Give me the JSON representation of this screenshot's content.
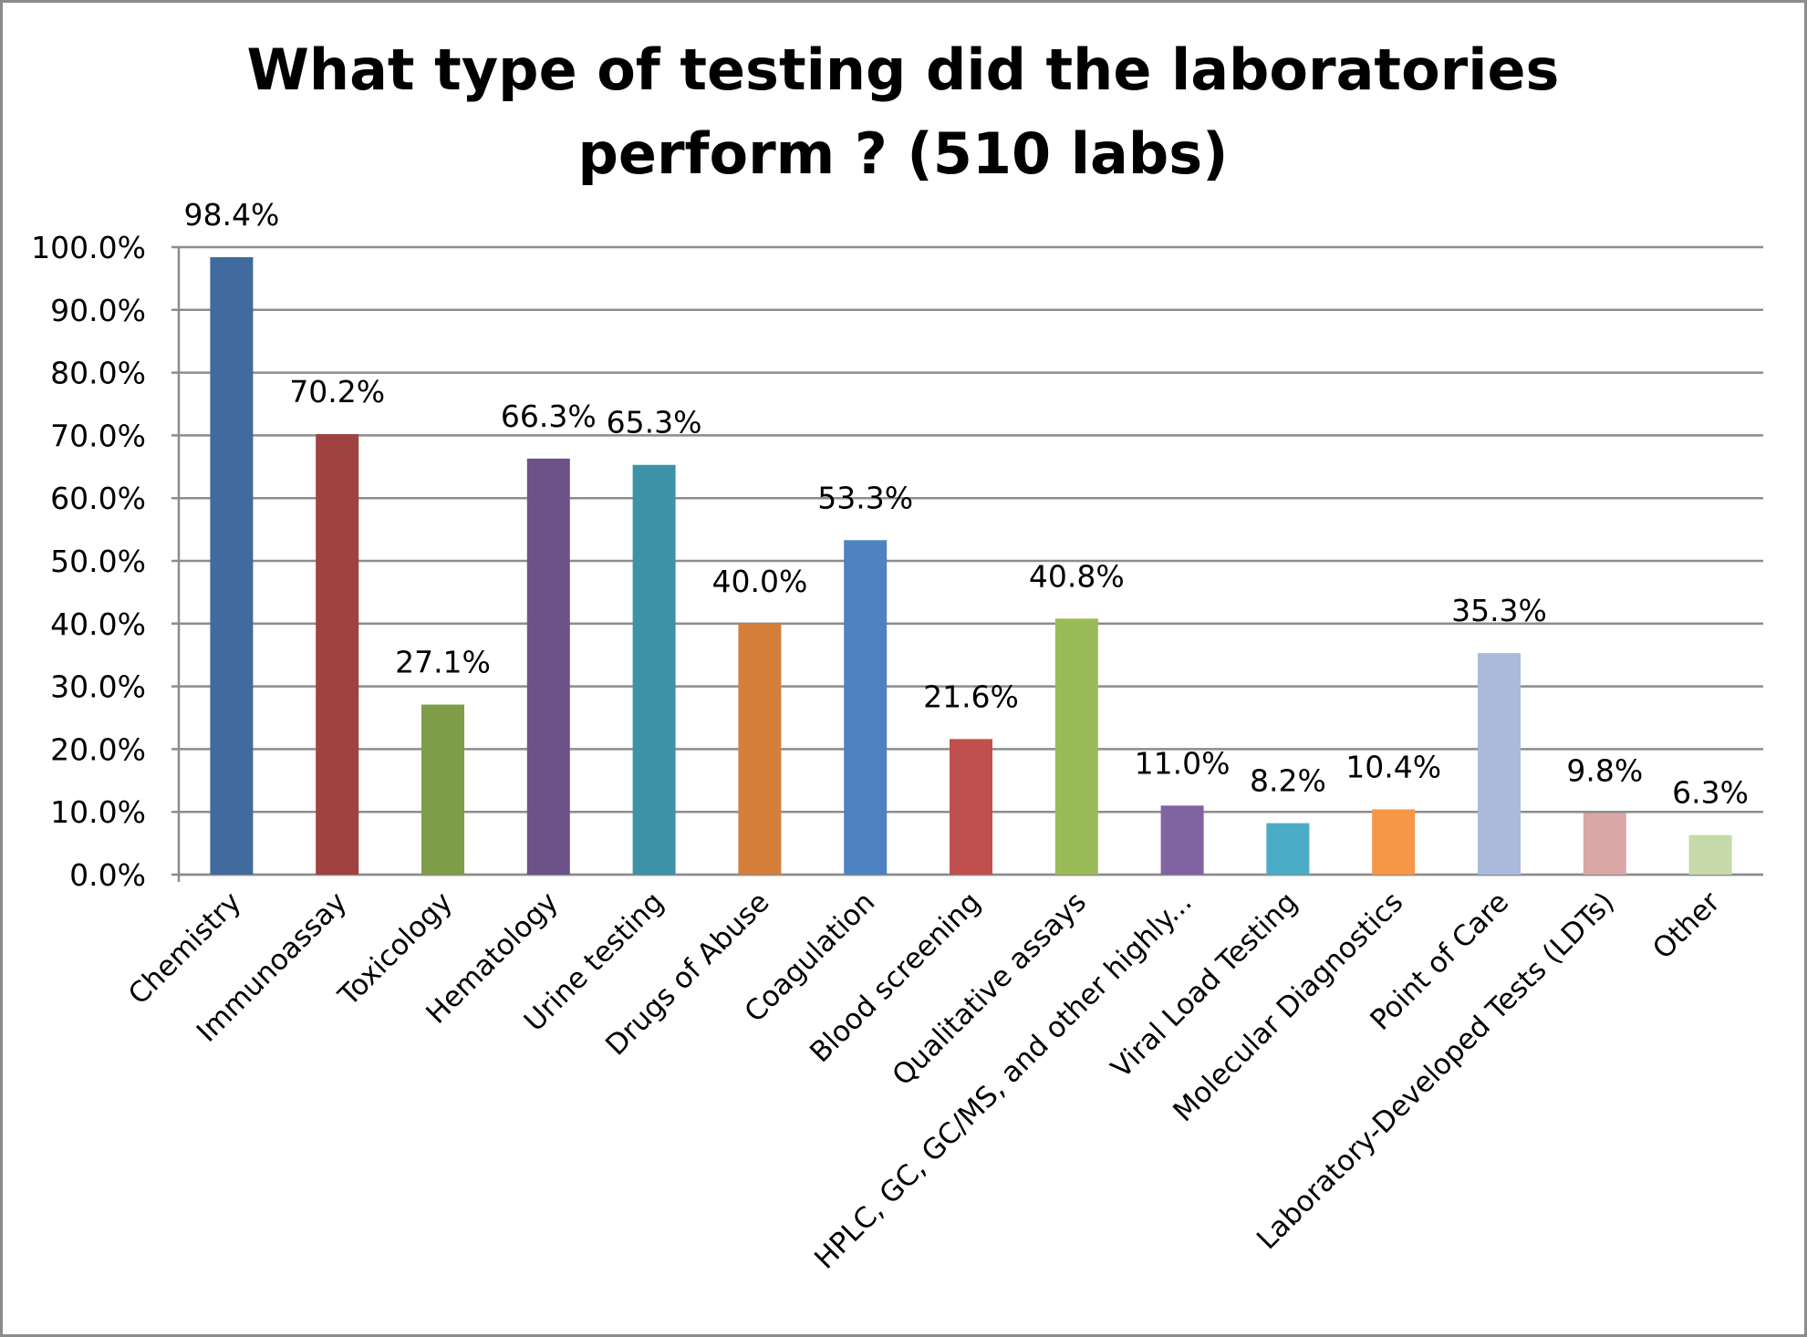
{
  "chart_data": {
    "type": "bar",
    "title_lines": [
      "What type of testing did the laboratories",
      "perform ? (510 labs)"
    ],
    "categories": [
      "Chemistry",
      "Immunoassay",
      "Toxicology",
      "Hematology",
      "Urine testing",
      "Drugs of Abuse",
      "Coagulation",
      "Blood screening",
      "Qualitative assays",
      "HPLC, GC, GC/MS, and other highly...",
      "Viral Load Testing",
      "Molecular Diagnostics",
      "Point of Care",
      "Laboratory-Developed Tests (LDTs)",
      "Other"
    ],
    "values": [
      98.4,
      70.2,
      27.1,
      66.3,
      65.3,
      40.0,
      53.3,
      21.6,
      40.8,
      11.0,
      8.2,
      10.4,
      35.3,
      9.8,
      6.3
    ],
    "data_labels": [
      "98.4%",
      "70.2%",
      "27.1%",
      "66.3%",
      "65.3%",
      "40.0%",
      "53.3%",
      "21.6%",
      "40.8%",
      "11.0%",
      "8.2%",
      "10.4%",
      "35.3%",
      "9.8%",
      "6.3%"
    ],
    "colors": [
      "#416A9E",
      "#A04240",
      "#7F9C48",
      "#6B5289",
      "#3D92A7",
      "#D57E3A",
      "#4E82C0",
      "#C0504D",
      "#9BBB59",
      "#8064A2",
      "#4BACC6",
      "#F79646",
      "#A9BADA",
      "#D9A7A6",
      "#C6D9A9"
    ],
    "yticks": [
      "0.0%",
      "10.0%",
      "20.0%",
      "30.0%",
      "40.0%",
      "50.0%",
      "60.0%",
      "70.0%",
      "80.0%",
      "90.0%",
      "100.0%"
    ],
    "ylim": [
      0,
      100
    ],
    "xlabel": "",
    "ylabel": "",
    "grid": true,
    "legend": "none"
  }
}
